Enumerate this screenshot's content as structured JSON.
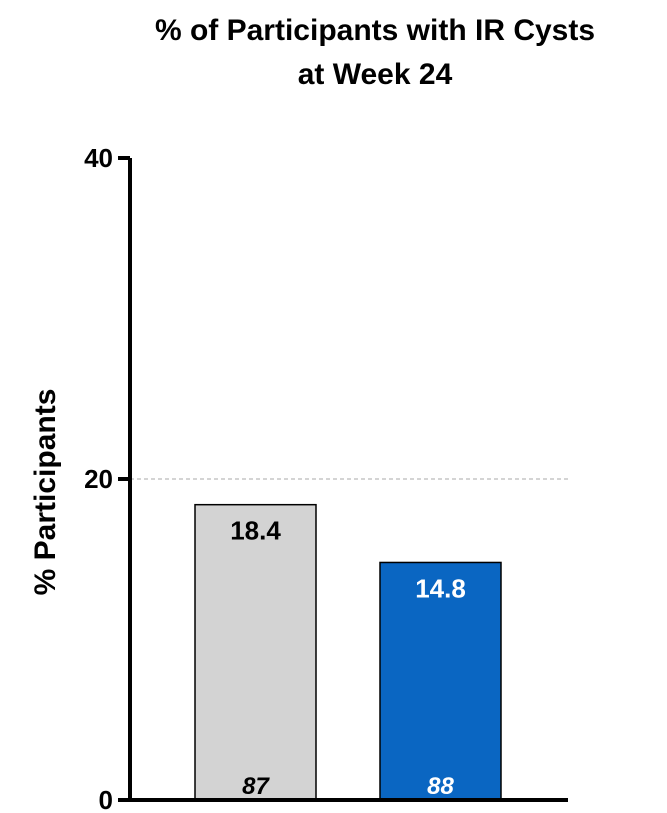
{
  "chart_data": {
    "type": "bar",
    "title_lines": [
      "% of Participants with IR Cysts",
      "at Week 24"
    ],
    "ylabel": "% Participants",
    "xlabel": "",
    "ylim": [
      0,
      40
    ],
    "yticks": [
      0,
      20,
      40
    ],
    "reference_line": 20,
    "grid": false,
    "categories": [
      "",
      ""
    ],
    "values": [
      18.4,
      14.8
    ],
    "value_labels": [
      "18.4",
      "14.8"
    ],
    "n_labels": [
      "87",
      "88"
    ],
    "colors": [
      "#d3d3d3",
      "#0a66c2"
    ],
    "label_colors": [
      "#000000",
      "#ffffff"
    ]
  }
}
